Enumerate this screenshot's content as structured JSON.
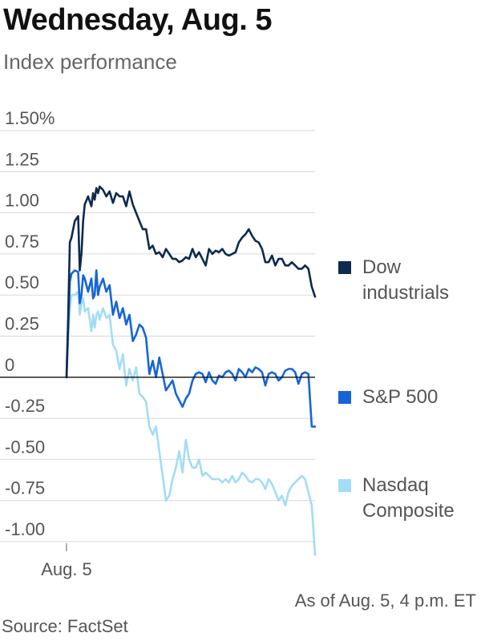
{
  "title": "Wednesday, Aug. 5",
  "subtitle": "Index performance",
  "note": "As of Aug. 5, 4 p.m. ET",
  "source": "Source: FactSet",
  "colors": {
    "dow": "#0d2a4f",
    "sp500": "#1565d8",
    "nasdaq": "#a3dcf6",
    "grid": "#d9d9d9",
    "zero": "#111111"
  },
  "chart_data": {
    "type": "line",
    "title": "Wednesday, Aug. 5",
    "subtitle": "Index performance",
    "xlabel": "",
    "ylabel": "",
    "ylim": [
      -1.0,
      1.5
    ],
    "yticks": [
      1.5,
      1.25,
      1.0,
      0.75,
      0.5,
      0.25,
      0,
      -0.25,
      -0.5,
      -0.75,
      -1.0
    ],
    "ytick_labels": [
      "1.50%",
      "1.25",
      "1.00",
      "0.75",
      "0.50",
      "0.25",
      "0",
      "-0.25",
      "-0.50",
      "-0.75",
      "-1.00"
    ],
    "xtick_labels": [
      "Aug. 5"
    ],
    "x_range": [
      0,
      150
    ],
    "grid": true,
    "legend_position": "right",
    "series": [
      {
        "name": "Dow industrials",
        "color": "#0d2a4f",
        "x": [
          0,
          1,
          2,
          3,
          5,
          7,
          8,
          9,
          10,
          11,
          13,
          15,
          16,
          17,
          18,
          19,
          20,
          22,
          24,
          26,
          28,
          30,
          32,
          34,
          36,
          38,
          40,
          42,
          44,
          46,
          48,
          50,
          52,
          54,
          56,
          58,
          60,
          62,
          64,
          66,
          68,
          70,
          72,
          74,
          76,
          78,
          80,
          82,
          84,
          86,
          88,
          90,
          92,
          94,
          96,
          98,
          100,
          102,
          104,
          106,
          108,
          110,
          112,
          114,
          116,
          118,
          120,
          122,
          124,
          126,
          128,
          130,
          132,
          134,
          136,
          138,
          140,
          142,
          144,
          146,
          148,
          150
        ],
        "values": [
          0.0,
          0.38,
          0.82,
          0.85,
          0.95,
          0.98,
          0.65,
          0.75,
          0.95,
          1.05,
          1.1,
          1.04,
          1.12,
          1.08,
          1.15,
          1.12,
          1.16,
          1.14,
          1.1,
          1.13,
          1.06,
          1.12,
          1.1,
          1.1,
          1.04,
          1.13,
          1.05,
          1.0,
          0.95,
          0.9,
          0.9,
          0.78,
          0.8,
          0.75,
          0.76,
          0.73,
          0.78,
          0.75,
          0.72,
          0.72,
          0.7,
          0.71,
          0.73,
          0.72,
          0.78,
          0.73,
          0.76,
          0.72,
          0.68,
          0.78,
          0.75,
          0.77,
          0.76,
          0.78,
          0.75,
          0.74,
          0.75,
          0.76,
          0.82,
          0.85,
          0.87,
          0.9,
          0.86,
          0.83,
          0.82,
          0.78,
          0.7,
          0.7,
          0.74,
          0.68,
          0.72,
          0.72,
          0.68,
          0.68,
          0.7,
          0.68,
          0.66,
          0.66,
          0.68,
          0.66,
          0.55,
          0.49
        ]
      },
      {
        "name": "S&P 500",
        "color": "#1565d8",
        "x": [
          0,
          1,
          2,
          3,
          5,
          7,
          8,
          9,
          10,
          11,
          13,
          15,
          16,
          17,
          18,
          19,
          20,
          22,
          24,
          26,
          28,
          30,
          32,
          34,
          36,
          38,
          40,
          42,
          44,
          46,
          48,
          50,
          52,
          54,
          56,
          58,
          60,
          62,
          64,
          66,
          68,
          70,
          72,
          74,
          76,
          78,
          80,
          82,
          84,
          86,
          88,
          90,
          92,
          94,
          96,
          98,
          100,
          102,
          104,
          106,
          108,
          110,
          112,
          114,
          116,
          118,
          120,
          122,
          124,
          126,
          128,
          130,
          132,
          134,
          136,
          138,
          140,
          142,
          144,
          146,
          148,
          150
        ],
        "values": [
          0.0,
          0.3,
          0.58,
          0.63,
          0.65,
          0.64,
          0.45,
          0.5,
          0.62,
          0.6,
          0.52,
          0.6,
          0.48,
          0.5,
          0.65,
          0.5,
          0.55,
          0.6,
          0.52,
          0.56,
          0.38,
          0.46,
          0.36,
          0.42,
          0.32,
          0.38,
          0.22,
          0.26,
          0.32,
          0.3,
          0.24,
          0.02,
          0.1,
          0.0,
          0.12,
          0.02,
          -0.08,
          -0.05,
          -0.02,
          -0.1,
          -0.14,
          -0.18,
          -0.13,
          -0.1,
          -0.02,
          0.02,
          0.03,
          0.02,
          -0.03,
          0.03,
          -0.02,
          -0.04,
          0.01,
          0.0,
          0.03,
          0.04,
          0.02,
          -0.02,
          0.05,
          0.03,
          0.0,
          0.05,
          0.03,
          0.06,
          0.05,
          0.03,
          -0.05,
          0.02,
          0.03,
          0.02,
          -0.02,
          0.0,
          0.04,
          0.05,
          0.05,
          0.03,
          -0.04,
          0.02,
          0.03,
          0.02,
          -0.3,
          -0.3
        ]
      },
      {
        "name": "Nasdaq Composite",
        "color": "#a3dcf6",
        "x": [
          0,
          1,
          2,
          3,
          5,
          7,
          8,
          9,
          10,
          11,
          13,
          15,
          16,
          17,
          18,
          19,
          20,
          22,
          24,
          26,
          28,
          30,
          32,
          34,
          36,
          38,
          40,
          42,
          44,
          46,
          48,
          50,
          52,
          54,
          56,
          58,
          60,
          62,
          64,
          66,
          68,
          70,
          72,
          74,
          76,
          78,
          80,
          82,
          84,
          86,
          88,
          90,
          92,
          94,
          96,
          98,
          100,
          102,
          104,
          106,
          108,
          110,
          112,
          114,
          116,
          118,
          120,
          122,
          124,
          126,
          128,
          130,
          132,
          134,
          136,
          138,
          140,
          142,
          144,
          146,
          148,
          150
        ],
        "values": [
          0.0,
          0.25,
          0.42,
          0.5,
          0.5,
          0.52,
          0.38,
          0.45,
          0.48,
          0.4,
          0.42,
          0.28,
          0.38,
          0.3,
          0.38,
          0.4,
          0.35,
          0.42,
          0.36,
          0.38,
          0.2,
          0.16,
          0.05,
          0.14,
          -0.05,
          0.05,
          -0.02,
          0.06,
          -0.1,
          -0.12,
          -0.15,
          -0.3,
          -0.35,
          -0.3,
          -0.45,
          -0.6,
          -0.75,
          -0.72,
          -0.62,
          -0.55,
          -0.45,
          -0.58,
          -0.38,
          -0.5,
          -0.55,
          -0.55,
          -0.5,
          -0.6,
          -0.58,
          -0.6,
          -0.62,
          -0.62,
          -0.62,
          -0.64,
          -0.62,
          -0.64,
          -0.6,
          -0.64,
          -0.62,
          -0.58,
          -0.6,
          -0.63,
          -0.64,
          -0.62,
          -0.62,
          -0.64,
          -0.68,
          -0.62,
          -0.65,
          -0.7,
          -0.75,
          -0.72,
          -0.78,
          -0.7,
          -0.66,
          -0.64,
          -0.62,
          -0.6,
          -0.62,
          -0.7,
          -0.78,
          -1.08
        ]
      }
    ]
  }
}
